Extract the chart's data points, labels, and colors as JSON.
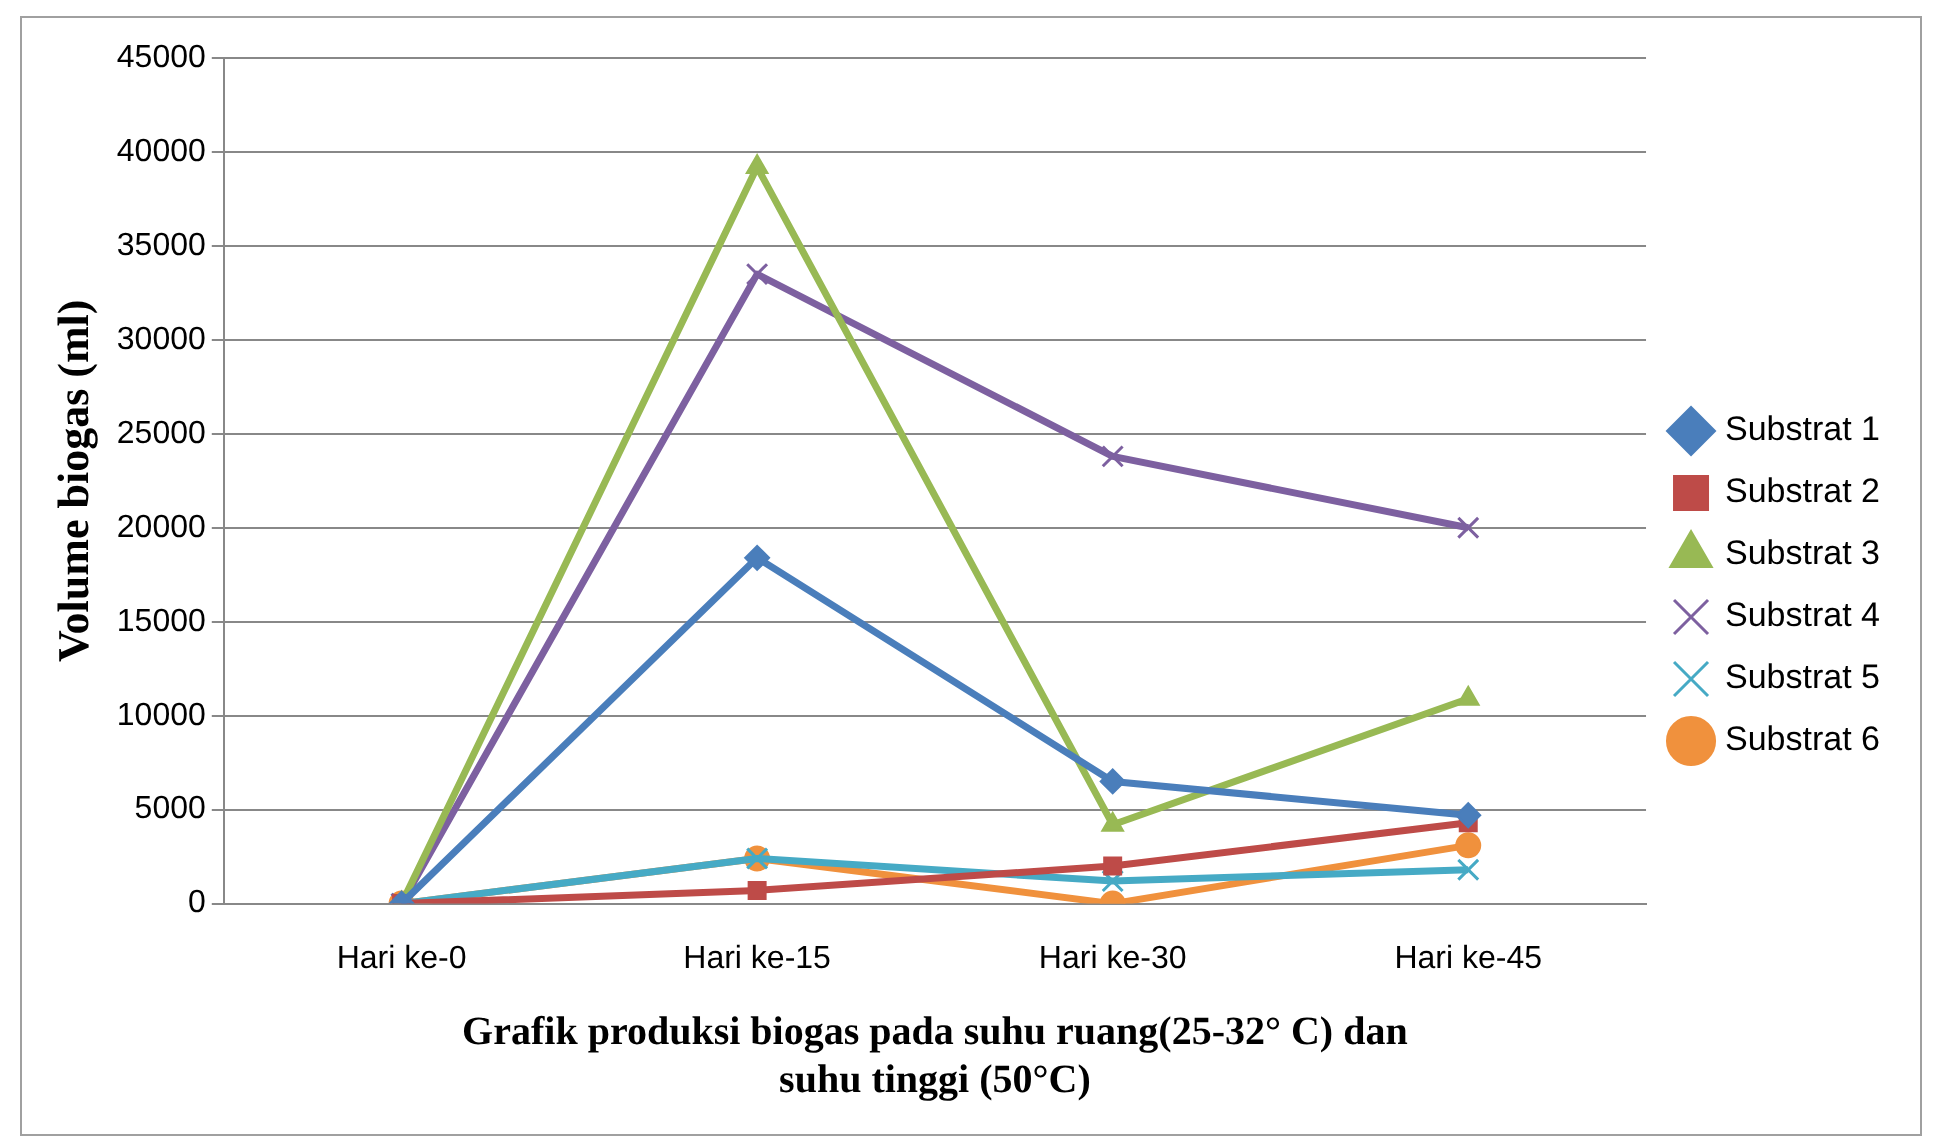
{
  "chart_data": {
    "type": "line",
    "xlabel": "Grafik produksi biogas pada suhu ruang(25-32° C) dan suhu tinggi (50°C)",
    "ylabel": "Volume biogas (ml)",
    "categories": [
      "Hari ke-0",
      "Hari ke-15",
      "Hari ke-30",
      "Hari ke-45"
    ],
    "series": [
      {
        "name": "Substrat 1",
        "color": "#4a7ebb",
        "marker": "diamond",
        "values": [
          0,
          18400,
          6500,
          4700
        ]
      },
      {
        "name": "Substrat 2",
        "color": "#be4b48",
        "marker": "square",
        "values": [
          0,
          700,
          2000,
          4300
        ]
      },
      {
        "name": "Substrat 3",
        "color": "#98b954",
        "marker": "triangle",
        "values": [
          0,
          39200,
          4200,
          10900
        ]
      },
      {
        "name": "Substrat 4",
        "color": "#7d60a0",
        "marker": "cross",
        "values": [
          0,
          33500,
          23800,
          20000
        ]
      },
      {
        "name": "Substrat 5",
        "color": "#46aac5",
        "marker": "cross",
        "values": [
          0,
          2400,
          1200,
          1800
        ]
      },
      {
        "name": "Substrat 6",
        "color": "#f0913d",
        "marker": "circle",
        "values": [
          0,
          2400,
          0,
          3100
        ]
      }
    ],
    "ylim": [
      0,
      45000
    ],
    "yticks": [
      0,
      5000,
      10000,
      15000,
      20000,
      25000,
      30000,
      35000,
      40000,
      45000
    ],
    "grid": "y",
    "legend": "right"
  }
}
